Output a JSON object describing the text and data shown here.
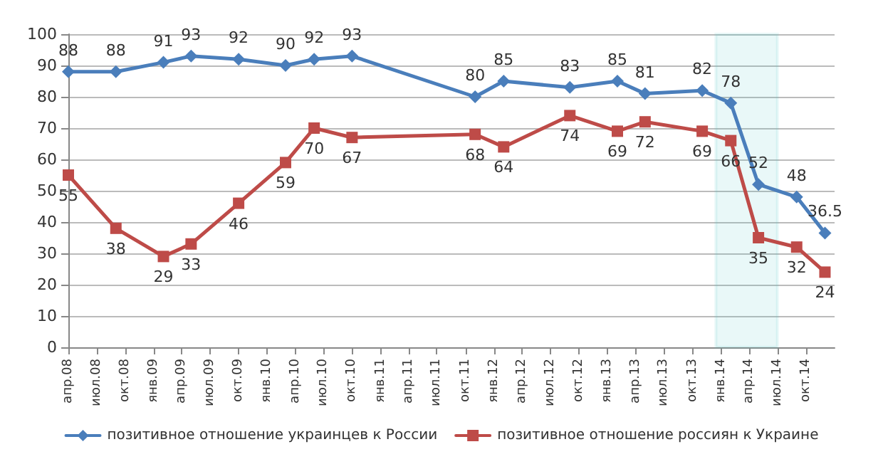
{
  "chart_data": {
    "type": "line",
    "x": [
      "2008-04",
      "2008-09",
      "2009-02",
      "2009-05",
      "2009-10",
      "2010-03",
      "2010-06",
      "2010-10",
      "2011-11",
      "2012-02",
      "2012-09",
      "2013-02",
      "2013-05",
      "2013-11",
      "2014-02",
      "2014-05",
      "2014-09",
      "2014-12"
    ],
    "series": [
      {
        "name": "позитивное отношение украинцев к России",
        "color": "#4a7ebb",
        "marker": "diamond",
        "values": [
          88,
          88,
          91,
          93,
          92,
          90,
          92,
          93,
          80,
          85,
          83,
          85,
          81,
          82,
          78,
          52,
          48,
          36.5
        ]
      },
      {
        "name": "позитивное отношение россиян к Украине",
        "color": "#be4b48",
        "marker": "square",
        "values": [
          55,
          38,
          29,
          33,
          46,
          59,
          70,
          67,
          68,
          64,
          74,
          69,
          72,
          69,
          66,
          35,
          32,
          24
        ]
      }
    ],
    "xlim": [
      "2008-04",
      "2015-01"
    ],
    "xticks": [
      {
        "value": "2008-04",
        "label": "апр.08"
      },
      {
        "value": "2008-07",
        "label": "июл.08"
      },
      {
        "value": "2008-10",
        "label": "окт.08"
      },
      {
        "value": "2009-01",
        "label": "янв.09"
      },
      {
        "value": "2009-04",
        "label": "апр.09"
      },
      {
        "value": "2009-07",
        "label": "июл.09"
      },
      {
        "value": "2009-10",
        "label": "окт.09"
      },
      {
        "value": "2010-01",
        "label": "янв.10"
      },
      {
        "value": "2010-04",
        "label": "апр.10"
      },
      {
        "value": "2010-07",
        "label": "июл.10"
      },
      {
        "value": "2010-10",
        "label": "окт.10"
      },
      {
        "value": "2011-01",
        "label": "янв.11"
      },
      {
        "value": "2011-04",
        "label": "апр.11"
      },
      {
        "value": "2011-07",
        "label": "июл.11"
      },
      {
        "value": "2011-10",
        "label": "окт.11"
      },
      {
        "value": "2012-01",
        "label": "янв.12"
      },
      {
        "value": "2012-04",
        "label": "апр.12"
      },
      {
        "value": "2012-07",
        "label": "июл.12"
      },
      {
        "value": "2012-10",
        "label": "окт.12"
      },
      {
        "value": "2013-01",
        "label": "янв.13"
      },
      {
        "value": "2013-04",
        "label": "апр.13"
      },
      {
        "value": "2013-07",
        "label": "июл.13"
      },
      {
        "value": "2013-10",
        "label": "окт.13"
      },
      {
        "value": "2014-01",
        "label": "янв.14"
      },
      {
        "value": "2014-04",
        "label": "апр.14"
      },
      {
        "value": "2014-07",
        "label": "июл.14"
      },
      {
        "value": "2014-10",
        "label": "окт.14"
      }
    ],
    "ylim": [
      0,
      100
    ],
    "yticks": [
      0,
      10,
      20,
      30,
      40,
      50,
      60,
      70,
      80,
      90,
      100
    ],
    "grid": "y",
    "legend": "bottom",
    "data_labels": true,
    "line_style": "solid",
    "bands": [
      {
        "axis": "x",
        "from": "2013-12-15",
        "to": "2014-07",
        "color": "#4bc6c6"
      }
    ]
  }
}
